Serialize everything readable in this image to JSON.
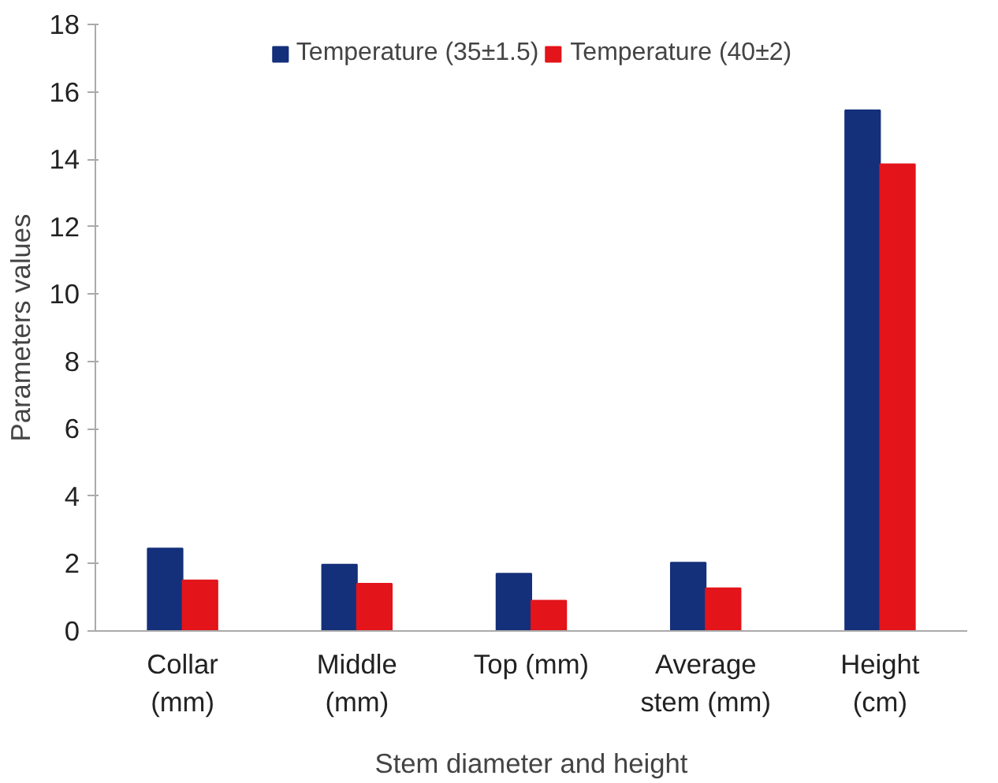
{
  "chart_data": {
    "type": "bar",
    "xlabel": "Stem diameter and height",
    "ylabel": "Parameters values",
    "categories": [
      "Collar\n(mm)",
      "Middle\n(mm)",
      "Top (mm)",
      "Average\nstem (mm)",
      "Height\n(cm)"
    ],
    "series": [
      {
        "name": "Temperature (35±1.5)",
        "color": "#14307a",
        "values": [
          2.45,
          1.97,
          1.7,
          2.03,
          15.45
        ]
      },
      {
        "name": "Temperature (40±2)",
        "color": "#e3141a",
        "values": [
          1.5,
          1.4,
          0.9,
          1.27,
          13.85
        ]
      }
    ],
    "ylim": [
      0,
      18
    ],
    "yticks": [
      0,
      2,
      4,
      6,
      8,
      10,
      12,
      14,
      16,
      18
    ],
    "grid": false,
    "legend": "top"
  }
}
